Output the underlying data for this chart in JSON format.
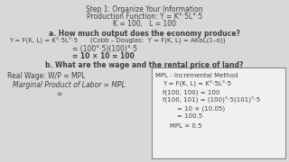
{
  "bg_color": "#d8d8d8",
  "box_color": "#f0f0f0",
  "text_color": "#404040",
  "title_line": "Step 1: Organize Your Information",
  "prod_func_label": "Production Function: Y = K°·5L°·5",
  "given": "K = 100,   L = 100",
  "q_a": "a. How much output does the economy produce?",
  "eq1_left": "Y = F(K, L) = K°·5L°·5",
  "eq1_right": "(Cobb – Douglas:  Y = F(K, L) = AKαL(1–α))",
  "eq2": "= (100°·5)(100)°·5",
  "eq3": "= 10 × 10 = 100",
  "q_b": "b. What are the wage and the rental price of land?",
  "real_wage": "Real Wage: W/P = MPL",
  "mpl_italic": "Marginal Product of Labor = MPL",
  "equals_sign": "=",
  "box_title": "MPL - Incremental Method",
  "box_line1": "Y = F(K, L) = K°·5L°·5",
  "box_line2": "f(100, 100) = 100",
  "box_line3": "f(100, 101) = (100)°·5(101)°·5",
  "box_line4": "= 10 × (10.05)",
  "box_line5": "= 100.5",
  "box_line6": "MPL ≈ 0.5"
}
